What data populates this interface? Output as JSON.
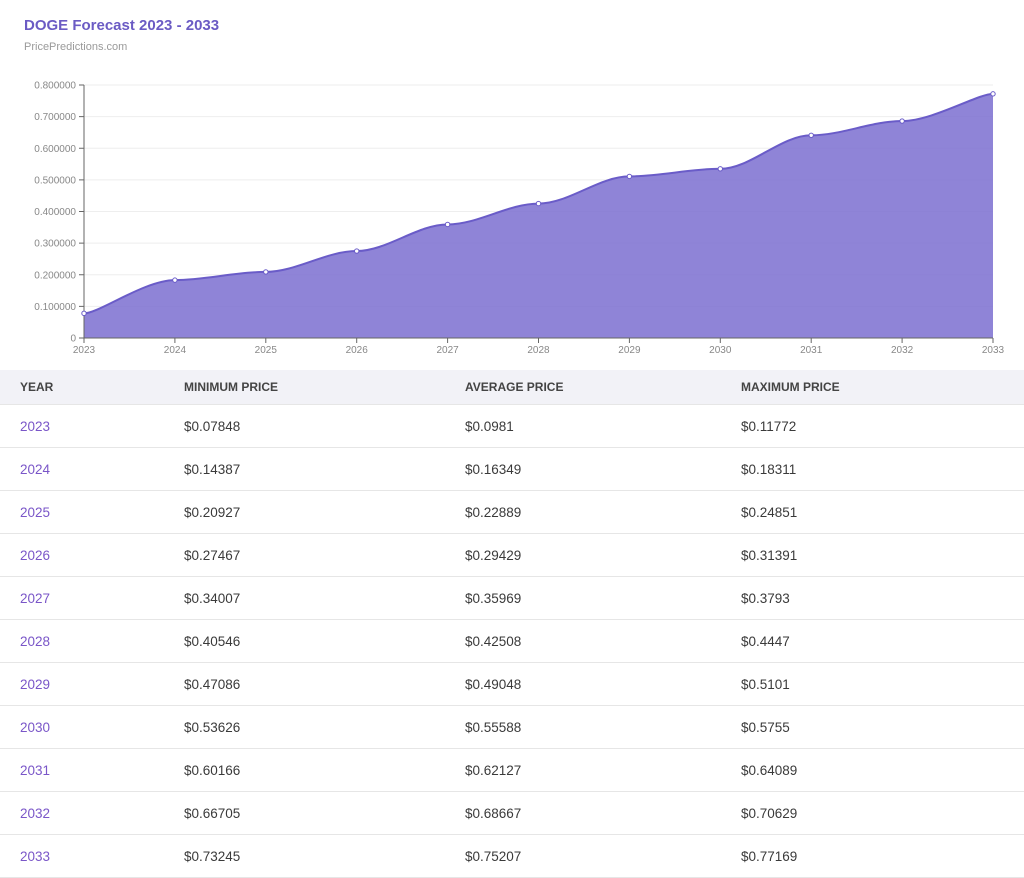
{
  "header": {
    "title": "DOGE Forecast 2023 - 2033",
    "source": "PricePredictions.com"
  },
  "chart_data": {
    "type": "area",
    "title": "DOGE Forecast 2023 - 2033",
    "xlabel": "",
    "ylabel": "",
    "x": [
      "2023",
      "2024",
      "2025",
      "2026",
      "2027",
      "2028",
      "2029",
      "2030",
      "2031",
      "2032",
      "2033"
    ],
    "series": [
      {
        "values": [
          0.078,
          0.183,
          0.209,
          0.275,
          0.359,
          0.425,
          0.511,
          0.535,
          0.641,
          0.686,
          0.772
        ]
      }
    ],
    "ylim": [
      0,
      0.8
    ],
    "yticks": [
      0,
      0.1,
      0.2,
      0.3,
      0.4,
      0.5,
      0.6,
      0.7,
      0.8
    ],
    "ytick_labels": [
      "0",
      "0.100000",
      "0.200000",
      "0.300000",
      "0.400000",
      "0.500000",
      "0.600000",
      "0.700000",
      "0.800000"
    ],
    "grid": true,
    "legend": "none",
    "fill_color": "#7b6fd0",
    "line_color": "#6a5cc8"
  },
  "table": {
    "headers": [
      "YEAR",
      "MINIMUM PRICE",
      "AVERAGE PRICE",
      "MAXIMUM PRICE"
    ],
    "rows": [
      [
        "2023",
        "$0.07848",
        "$0.0981",
        "$0.11772"
      ],
      [
        "2024",
        "$0.14387",
        "$0.16349",
        "$0.18311"
      ],
      [
        "2025",
        "$0.20927",
        "$0.22889",
        "$0.24851"
      ],
      [
        "2026",
        "$0.27467",
        "$0.29429",
        "$0.31391"
      ],
      [
        "2027",
        "$0.34007",
        "$0.35969",
        "$0.3793"
      ],
      [
        "2028",
        "$0.40546",
        "$0.42508",
        "$0.4447"
      ],
      [
        "2029",
        "$0.47086",
        "$0.49048",
        "$0.5101"
      ],
      [
        "2030",
        "$0.53626",
        "$0.55588",
        "$0.5755"
      ],
      [
        "2031",
        "$0.60166",
        "$0.62127",
        "$0.64089"
      ],
      [
        "2032",
        "$0.66705",
        "$0.68667",
        "$0.70629"
      ],
      [
        "2033",
        "$0.73245",
        "$0.75207",
        "$0.77169"
      ]
    ]
  },
  "colors": {
    "accent": "#6b5bc4",
    "year_link": "#7a56c8",
    "header_bg": "#f2f2f7"
  }
}
